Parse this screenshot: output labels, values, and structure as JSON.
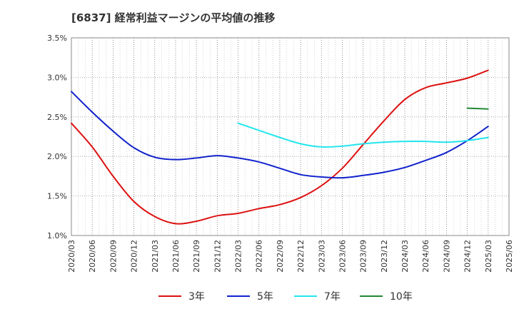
{
  "chart_data": {
    "type": "line",
    "title": "[6837]  経常利益マージンの平均値の推移",
    "xlabel": "",
    "ylabel": "",
    "ylim": [
      0.01,
      0.035
    ],
    "y_ticks": [
      {
        "value": 0.035,
        "label": "3.5%"
      },
      {
        "value": 0.03,
        "label": "3.0%"
      },
      {
        "value": 0.025,
        "label": "2.5%"
      },
      {
        "value": 0.02,
        "label": "2.0%"
      },
      {
        "value": 0.015,
        "label": "1.5%"
      },
      {
        "value": 0.01,
        "label": "1.0%"
      }
    ],
    "x_ticks": [
      "2020/03",
      "2020/06",
      "2020/09",
      "2020/12",
      "2021/03",
      "2021/06",
      "2021/09",
      "2021/12",
      "2022/03",
      "2022/06",
      "2022/09",
      "2022/12",
      "2023/03",
      "2023/06",
      "2023/09",
      "2023/12",
      "2024/03",
      "2024/06",
      "2024/09",
      "2024/12",
      "2025/03",
      "2025/06"
    ],
    "grid": true,
    "legend_position": "bottom",
    "series": [
      {
        "name": "3年",
        "color": "#dd1111",
        "points": [
          [
            "2020/03",
            0.0242
          ],
          [
            "2020/06",
            0.0212
          ],
          [
            "2020/09",
            0.0175
          ],
          [
            "2020/12",
            0.0143
          ],
          [
            "2021/03",
            0.0124
          ],
          [
            "2021/06",
            0.0115
          ],
          [
            "2021/09",
            0.0118
          ],
          [
            "2021/12",
            0.0125
          ],
          [
            "2022/03",
            0.0128
          ],
          [
            "2022/06",
            0.0134
          ],
          [
            "2022/09",
            0.0139
          ],
          [
            "2022/12",
            0.0148
          ],
          [
            "2023/03",
            0.0163
          ],
          [
            "2023/06",
            0.0185
          ],
          [
            "2023/09",
            0.0215
          ],
          [
            "2023/12",
            0.0245
          ],
          [
            "2024/03",
            0.0272
          ],
          [
            "2024/06",
            0.0287
          ],
          [
            "2024/09",
            0.0293
          ],
          [
            "2024/12",
            0.0299
          ],
          [
            "2025/03",
            0.0309
          ]
        ]
      },
      {
        "name": "5年",
        "color": "#1122cc",
        "points": [
          [
            "2020/03",
            0.0282
          ],
          [
            "2020/06",
            0.0256
          ],
          [
            "2020/09",
            0.0232
          ],
          [
            "2020/12",
            0.0211
          ],
          [
            "2021/03",
            0.0199
          ],
          [
            "2021/06",
            0.0196
          ],
          [
            "2021/09",
            0.0198
          ],
          [
            "2021/12",
            0.0201
          ],
          [
            "2022/03",
            0.0198
          ],
          [
            "2022/06",
            0.0193
          ],
          [
            "2022/09",
            0.0185
          ],
          [
            "2022/12",
            0.0177
          ],
          [
            "2023/03",
            0.0174
          ],
          [
            "2023/06",
            0.0173
          ],
          [
            "2023/09",
            0.0176
          ],
          [
            "2023/12",
            0.018
          ],
          [
            "2024/03",
            0.0186
          ],
          [
            "2024/06",
            0.0195
          ],
          [
            "2024/09",
            0.0205
          ],
          [
            "2024/12",
            0.022
          ],
          [
            "2025/03",
            0.0238
          ]
        ]
      },
      {
        "name": "7年",
        "color": "#22e5ee",
        "points": [
          [
            "2022/03",
            0.0242
          ],
          [
            "2022/06",
            0.0233
          ],
          [
            "2022/09",
            0.0224
          ],
          [
            "2022/12",
            0.0216
          ],
          [
            "2023/03",
            0.0212
          ],
          [
            "2023/06",
            0.0213
          ],
          [
            "2023/09",
            0.0216
          ],
          [
            "2023/12",
            0.0218
          ],
          [
            "2024/03",
            0.0219
          ],
          [
            "2024/06",
            0.0219
          ],
          [
            "2024/09",
            0.0218
          ],
          [
            "2024/12",
            0.022
          ],
          [
            "2025/03",
            0.0224
          ]
        ]
      },
      {
        "name": "10年",
        "color": "#228833",
        "points": [
          [
            "2024/12",
            0.0261
          ],
          [
            "2025/03",
            0.026
          ]
        ]
      }
    ]
  }
}
